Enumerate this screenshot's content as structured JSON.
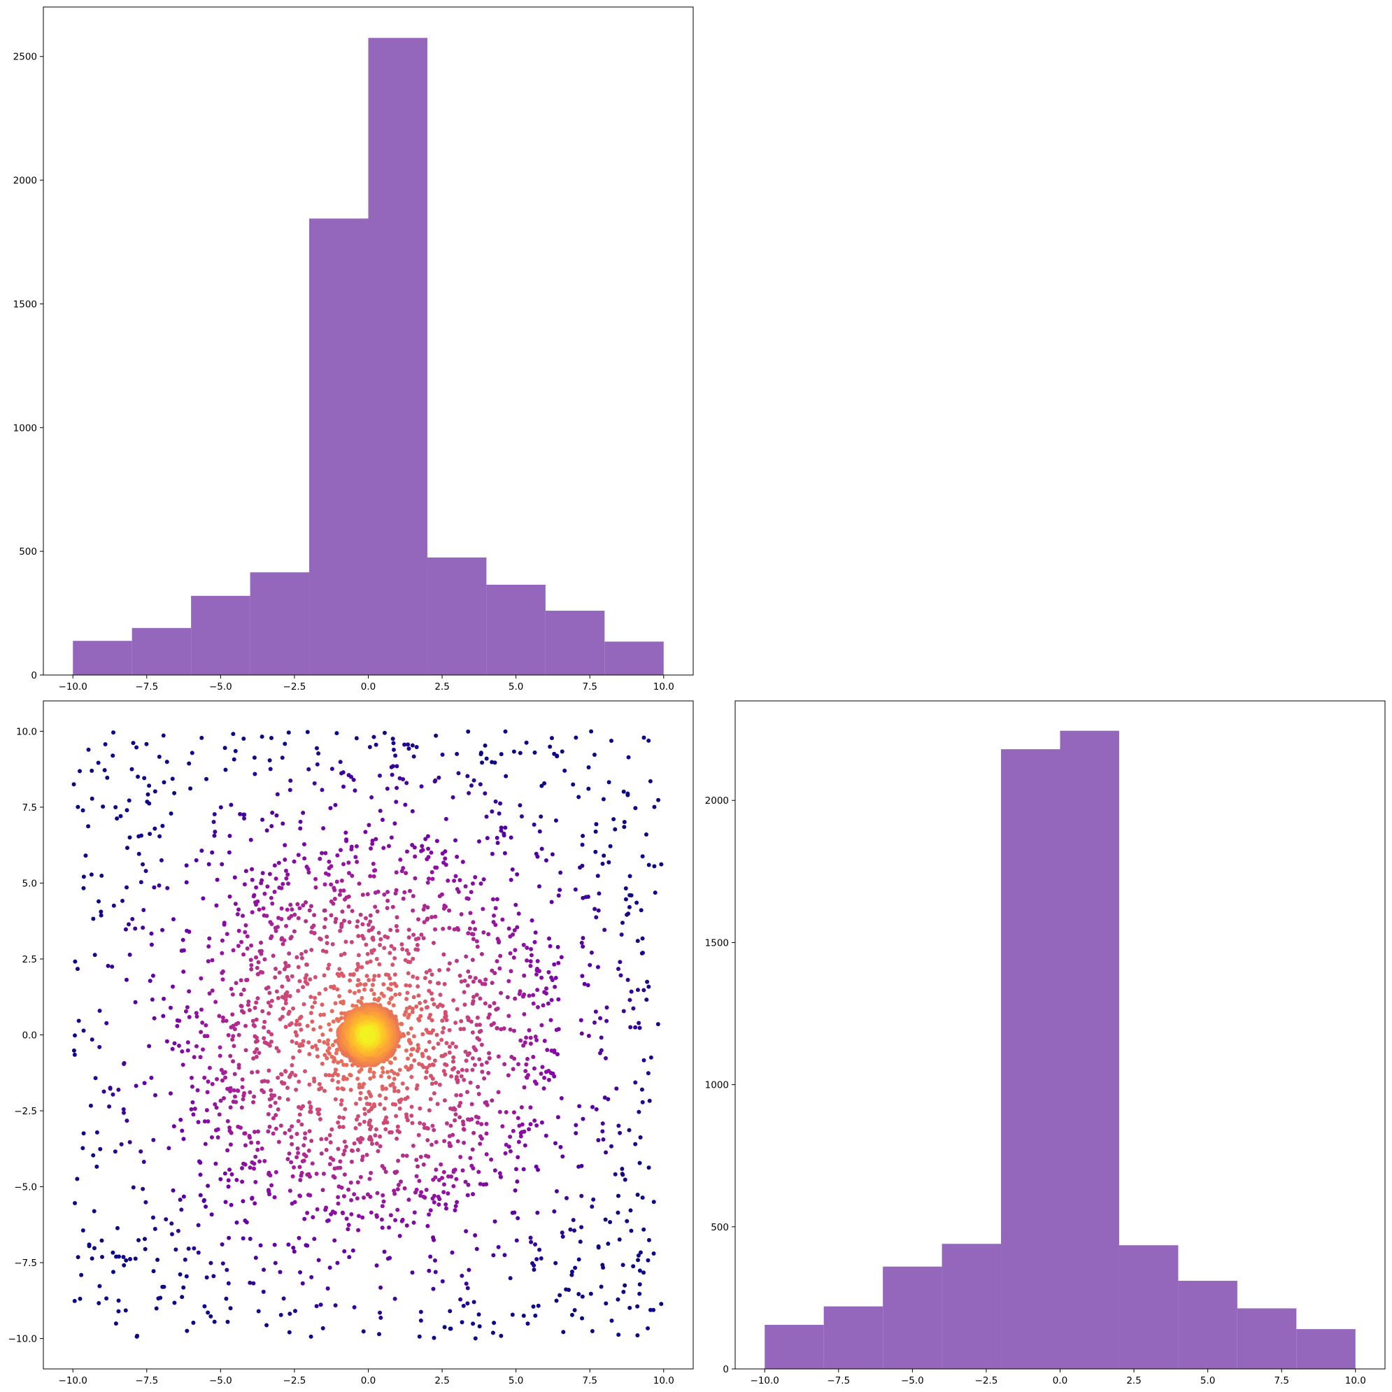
{
  "chart_data": [
    {
      "panel": "top-left",
      "type": "bar",
      "bin_edges": [
        -10,
        -8,
        -6,
        -4,
        -2,
        0,
        2,
        4,
        6,
        8,
        10
      ],
      "values": [
        138,
        190,
        320,
        415,
        1845,
        2575,
        475,
        365,
        260,
        135
      ],
      "xlim": [
        -11,
        11
      ],
      "ylim": [
        0,
        2700
      ],
      "xticks": [
        "−10.0",
        "−7.5",
        "−5.0",
        "−2.5",
        "0.0",
        "2.5",
        "5.0",
        "7.5",
        "10.0"
      ],
      "xtick_values": [
        -10,
        -7.5,
        -5,
        -2.5,
        0,
        2.5,
        5,
        7.5,
        10
      ],
      "yticks": [
        "0",
        "500",
        "1000",
        "1500",
        "2000",
        "2500"
      ],
      "ytick_values": [
        0,
        500,
        1000,
        1500,
        2000,
        2500
      ],
      "color": "#9467bd",
      "title": "",
      "xlabel": "",
      "ylabel": ""
    },
    {
      "panel": "bottom-left",
      "type": "scatter",
      "n_points": 2600,
      "distribution": "radially concentrated around origin, uniform spread to edges",
      "xlim": [
        -11,
        11
      ],
      "ylim": [
        -11,
        11
      ],
      "xticks": [
        "−10.0",
        "−7.5",
        "−5.0",
        "−2.5",
        "0.0",
        "2.5",
        "5.0",
        "7.5",
        "10.0"
      ],
      "xtick_values": [
        -10,
        -7.5,
        -5,
        -2.5,
        0,
        2.5,
        5,
        7.5,
        10
      ],
      "yticks": [
        "−10.0",
        "−7.5",
        "−5.0",
        "−2.5",
        "0.0",
        "2.5",
        "5.0",
        "7.5",
        "10.0"
      ],
      "ytick_values": [
        -10,
        -7.5,
        -5,
        -2.5,
        0,
        2.5,
        5,
        7.5,
        10
      ],
      "colormap": "plasma",
      "colormap_stops": [
        "#0d0887",
        "#46039f",
        "#7201a8",
        "#9c179e",
        "#bd3786",
        "#d8576b",
        "#ed7953",
        "#fb9f3a",
        "#fdca26",
        "#f0f921"
      ],
      "title": "",
      "xlabel": "",
      "ylabel": ""
    },
    {
      "panel": "bottom-right",
      "type": "bar",
      "bin_edges": [
        -10,
        -8,
        -6,
        -4,
        -2,
        0,
        2,
        4,
        6,
        8,
        10
      ],
      "values": [
        155,
        220,
        360,
        440,
        2180,
        2245,
        435,
        310,
        213,
        140
      ],
      "xlim": [
        -11,
        11
      ],
      "ylim": [
        0,
        2350
      ],
      "xticks": [
        "−10.0",
        "−7.5",
        "−5.0",
        "−2.5",
        "0.0",
        "2.5",
        "5.0",
        "7.5",
        "10.0"
      ],
      "xtick_values": [
        -10,
        -7.5,
        -5,
        -2.5,
        0,
        2.5,
        5,
        7.5,
        10
      ],
      "yticks": [
        "0",
        "500",
        "1000",
        "1500",
        "2000"
      ],
      "ytick_values": [
        0,
        500,
        1000,
        1500,
        2000
      ],
      "color": "#9467bd",
      "title": "",
      "xlabel": "",
      "ylabel": ""
    }
  ]
}
